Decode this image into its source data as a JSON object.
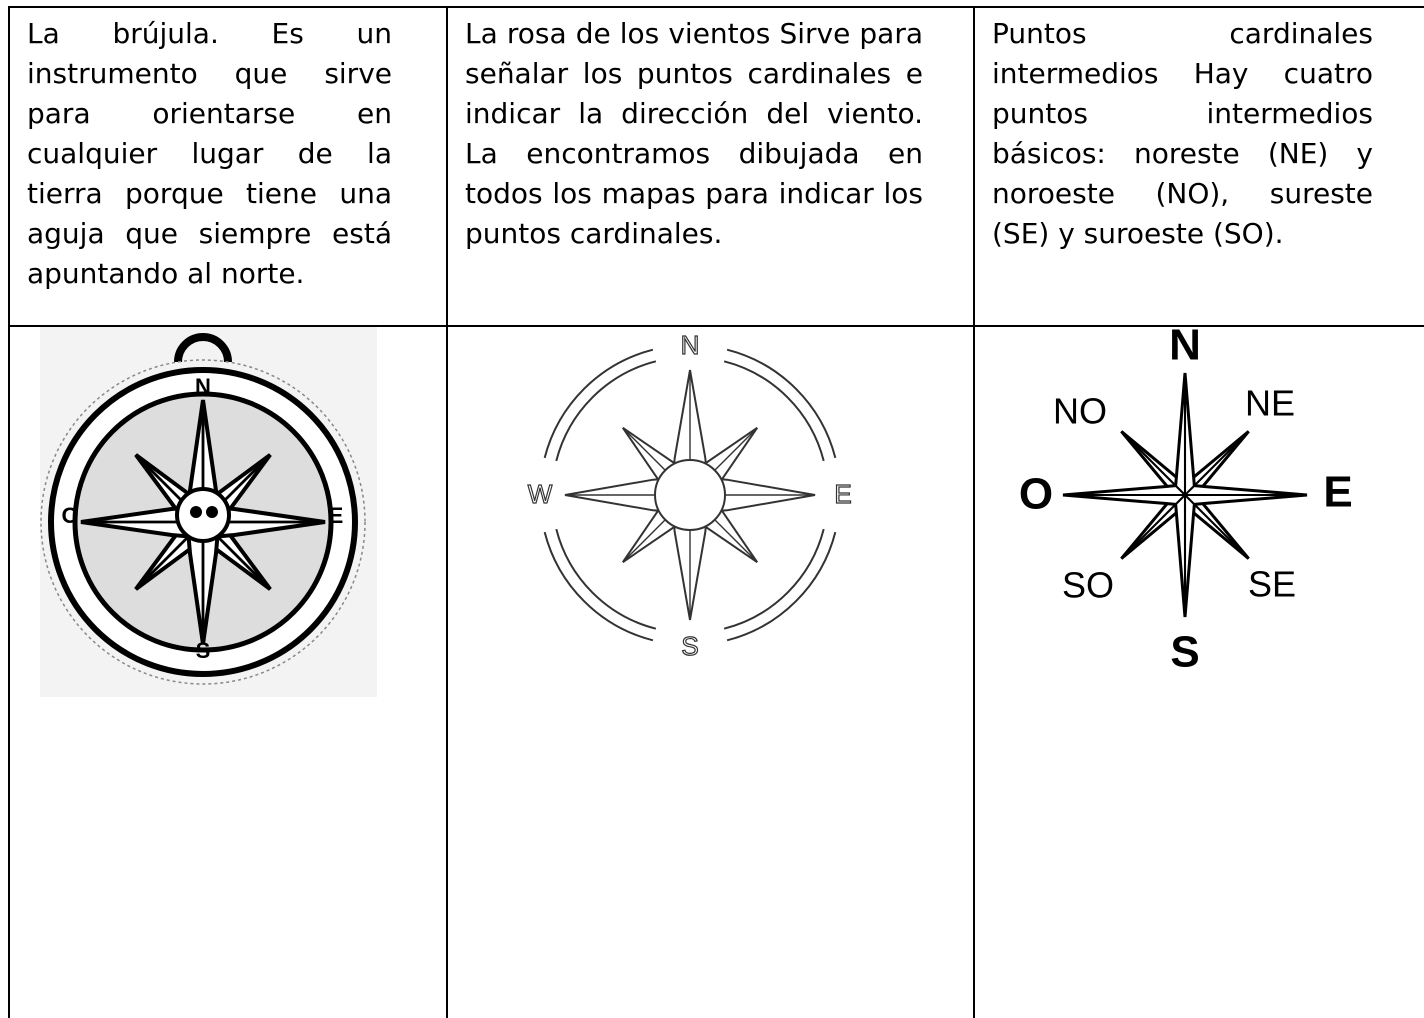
{
  "table": {
    "rows": [
      [
        "La brújula. Es un instrumento que sirve para orientarse en cualquier lugar de la tierra porque tiene una aguja que siempre está apuntando al norte.",
        "La rosa de los vientos Sirve para señalar los puntos cardinales e indicar la dirección del viento. La encontramos dibujada en todos los mapas para indicar los puntos cardinales.",
        "Puntos cardinales intermedios Hay cuatro puntos intermedios básicos: noreste (NE) y noroeste (NO), sureste (SE) y suroeste (SO)."
      ]
    ]
  },
  "images": [
    {
      "labels": [
        "N",
        "O",
        "E",
        "S"
      ]
    },
    {
      "labels": [
        "N",
        "W",
        "E",
        "S"
      ]
    },
    {
      "labels": [
        "N",
        "NO",
        "NE",
        "O",
        "E",
        "SO",
        "SE",
        "S"
      ]
    }
  ]
}
